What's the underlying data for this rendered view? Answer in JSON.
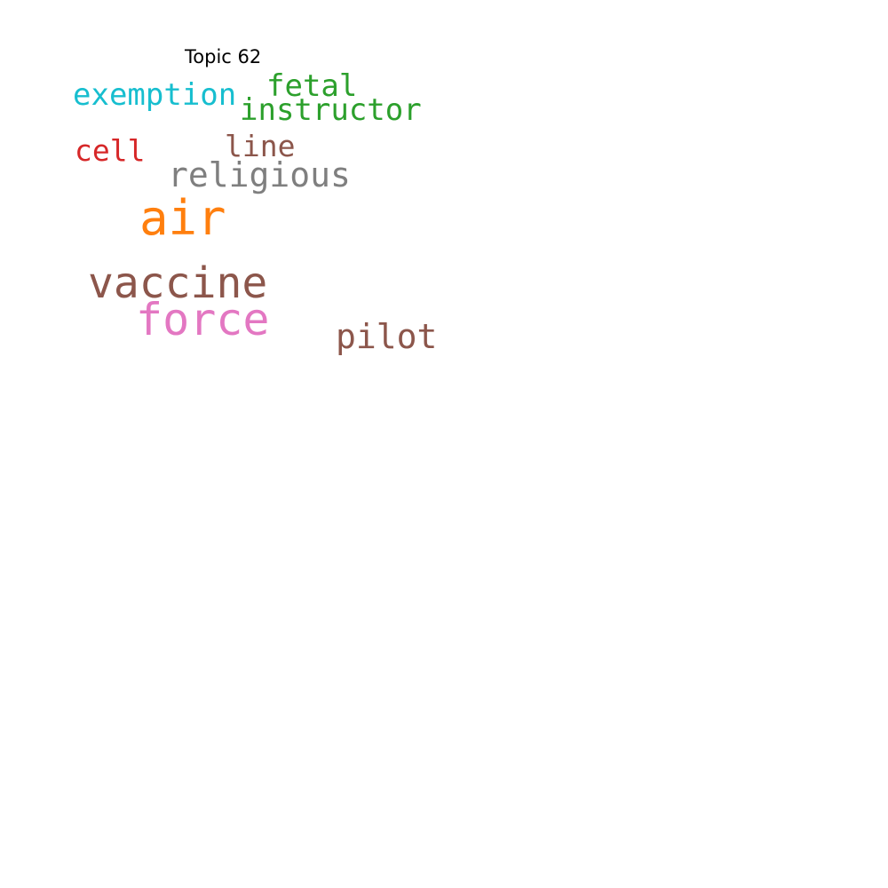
{
  "title": "Topic 62",
  "words": [
    {
      "key": "exemption",
      "text": "exemption",
      "color": "#17becf"
    },
    {
      "key": "fetal",
      "text": "fetal",
      "color": "#2ca02c"
    },
    {
      "key": "instructor",
      "text": "instructor",
      "color": "#2ca02c"
    },
    {
      "key": "cell",
      "text": "cell",
      "color": "#d62728"
    },
    {
      "key": "line",
      "text": "line",
      "color": "#8c564b"
    },
    {
      "key": "religious",
      "text": "religious",
      "color": "#7f7f7f"
    },
    {
      "key": "air",
      "text": "air",
      "color": "#ff7f0e"
    },
    {
      "key": "vaccine",
      "text": "vaccine",
      "color": "#8c564b"
    },
    {
      "key": "force",
      "text": "force",
      "color": "#e377c2"
    },
    {
      "key": "pilot",
      "text": "pilot",
      "color": "#8c564b"
    }
  ]
}
